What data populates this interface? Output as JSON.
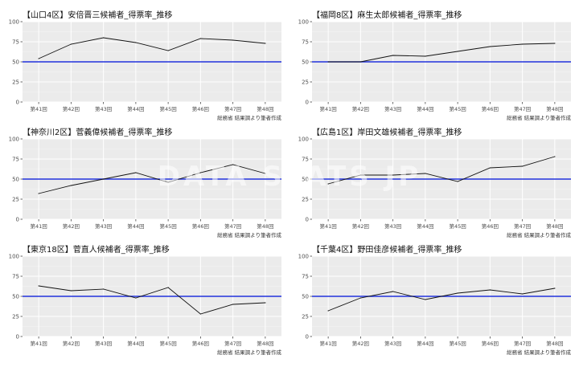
{
  "watermark": "DATA STATS JP",
  "chart_data": [
    {
      "type": "line",
      "title": "【山口4区】安倍晋三候補者_得票率_推移",
      "source": "総務省 結果調より筆者作成",
      "categories": [
        "第41回",
        "第42回",
        "第43回",
        "第44回",
        "第45回",
        "第46回",
        "第47回",
        "第48回"
      ],
      "values": [
        54,
        72,
        80,
        74,
        64,
        79,
        77,
        73
      ],
      "ylim": [
        0,
        100
      ],
      "yticks": [
        0,
        25,
        50,
        75,
        100
      ],
      "reference_line": 50
    },
    {
      "type": "line",
      "title": "【福岡8区】麻生太郎候補者_得票率_推移",
      "source": "総務省 結果調より筆者作成",
      "categories": [
        "第41回",
        "第42回",
        "第43回",
        "第44回",
        "第45回",
        "第46回",
        "第47回",
        "第48回"
      ],
      "values": [
        50,
        50,
        58,
        57,
        63,
        69,
        72,
        73
      ],
      "ylim": [
        0,
        100
      ],
      "yticks": [
        0,
        25,
        50,
        75,
        100
      ],
      "reference_line": 50
    },
    {
      "type": "line",
      "title": "【神奈川2区】菅義偉候補者_得票率_推移",
      "source": "総務省 結果調より筆者作成",
      "categories": [
        "第41回",
        "第42回",
        "第43回",
        "第44回",
        "第45回",
        "第46回",
        "第47回",
        "第48回"
      ],
      "values": [
        32,
        42,
        50,
        58,
        46,
        58,
        68,
        57
      ],
      "ylim": [
        0,
        100
      ],
      "yticks": [
        0,
        25,
        50,
        75,
        100
      ],
      "reference_line": 50
    },
    {
      "type": "line",
      "title": "【広島1区】岸田文雄候補者_得票率_推移",
      "source": "総務省 結果調より筆者作成",
      "categories": [
        "第41回",
        "第42回",
        "第43回",
        "第44回",
        "第45回",
        "第46回",
        "第47回",
        "第48回"
      ],
      "values": [
        44,
        55,
        55,
        57,
        47,
        64,
        66,
        78
      ],
      "ylim": [
        0,
        100
      ],
      "yticks": [
        0,
        25,
        50,
        75,
        100
      ],
      "reference_line": 50
    },
    {
      "type": "line",
      "title": "【東京18区】菅直人候補者_得票率_推移",
      "source": "総務省 結果調より筆者作成",
      "categories": [
        "第41回",
        "第42回",
        "第43回",
        "第44回",
        "第45回",
        "第46回",
        "第47回",
        "第48回"
      ],
      "values": [
        63,
        57,
        59,
        48,
        61,
        28,
        40,
        42
      ],
      "ylim": [
        0,
        100
      ],
      "yticks": [
        0,
        25,
        50,
        75,
        100
      ],
      "reference_line": 50
    },
    {
      "type": "line",
      "title": "【千葉4区】野田佳彦候補者_得票率_推移",
      "source": "総務省 結果調より筆者作成",
      "categories": [
        "第41回",
        "第42回",
        "第43回",
        "第44回",
        "第45回",
        "第46回",
        "第47回",
        "第48回"
      ],
      "values": [
        32,
        48,
        56,
        46,
        54,
        58,
        53,
        60
      ],
      "ylim": [
        0,
        100
      ],
      "yticks": [
        0,
        25,
        50,
        75,
        100
      ],
      "reference_line": 50
    }
  ],
  "colors": {
    "panel_bg": "#ebebeb",
    "grid_major": "#ffffff",
    "grid_minor": "#f5f5f5",
    "series": "#111111",
    "reference": "#2233dd"
  }
}
